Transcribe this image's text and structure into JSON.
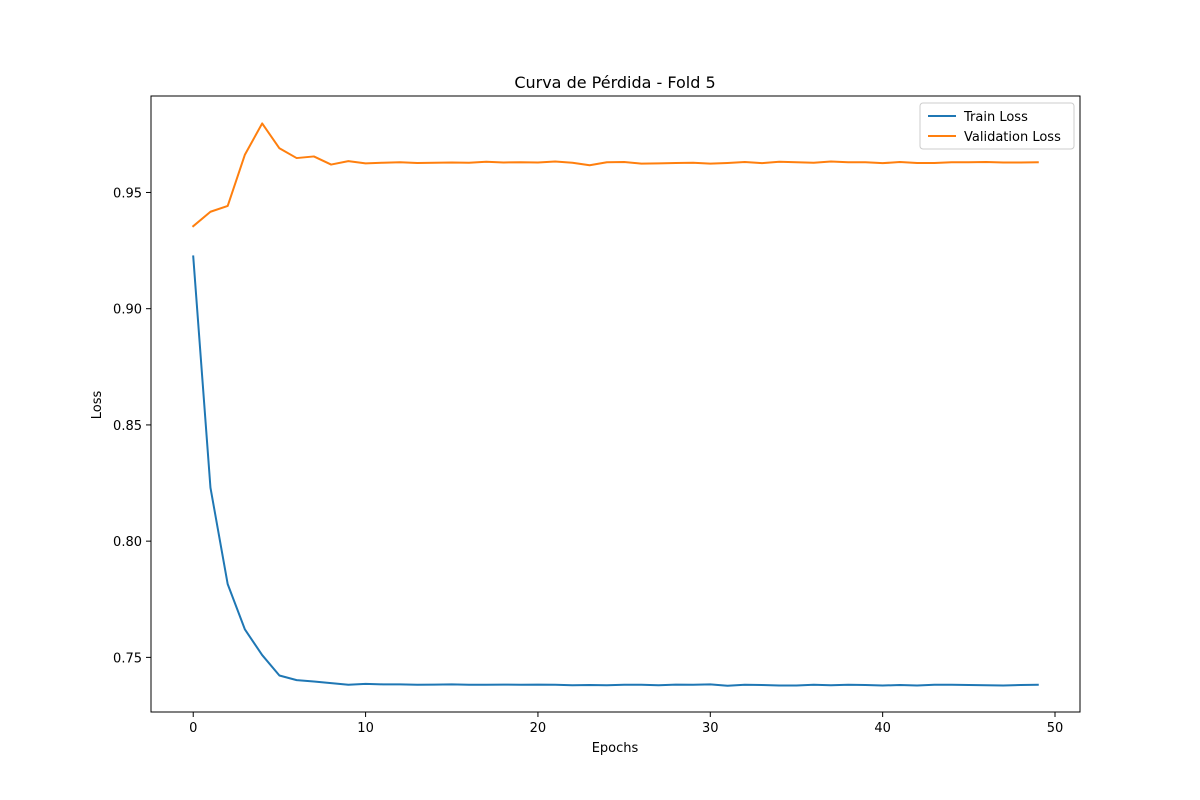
{
  "chart_data": {
    "type": "line",
    "title": "Curva de Pérdida - Fold 5",
    "xlabel": "Epochs",
    "ylabel": "Loss",
    "xlim": [
      -2.45,
      51.45
    ],
    "ylim": [
      0.7265,
      0.9915
    ],
    "xticks": [
      0,
      10,
      20,
      30,
      40,
      50
    ],
    "xtick_labels": [
      "0",
      "10",
      "20",
      "30",
      "40",
      "50"
    ],
    "yticks": [
      0.75,
      0.8,
      0.85,
      0.9,
      0.95
    ],
    "ytick_labels": [
      "0.75",
      "0.80",
      "0.85",
      "0.90",
      "0.95"
    ],
    "grid": false,
    "legend_position": "upper-right",
    "x": [
      0,
      1,
      2,
      3,
      4,
      5,
      6,
      7,
      8,
      9,
      10,
      11,
      12,
      13,
      14,
      15,
      16,
      17,
      18,
      19,
      20,
      21,
      22,
      23,
      24,
      25,
      26,
      27,
      28,
      29,
      30,
      31,
      32,
      33,
      34,
      35,
      36,
      37,
      38,
      39,
      40,
      41,
      42,
      43,
      44,
      45,
      46,
      47,
      48,
      49
    ],
    "series": [
      {
        "name": "Train Loss",
        "color": "#1f77b4",
        "values": [
          0.9225,
          0.823,
          0.7815,
          0.762,
          0.751,
          0.7422,
          0.7402,
          0.7396,
          0.7389,
          0.7382,
          0.7386,
          0.7384,
          0.7384,
          0.7382,
          0.7383,
          0.7384,
          0.7382,
          0.7382,
          0.7383,
          0.7382,
          0.7383,
          0.7382,
          0.738,
          0.7381,
          0.738,
          0.7382,
          0.7382,
          0.738,
          0.7383,
          0.7382,
          0.7384,
          0.7378,
          0.7382,
          0.7381,
          0.7379,
          0.7379,
          0.7382,
          0.738,
          0.7382,
          0.7381,
          0.7379,
          0.7381,
          0.7379,
          0.7382,
          0.7382,
          0.7381,
          0.738,
          0.7379,
          0.7381,
          0.7382
        ]
      },
      {
        "name": "Validation Loss",
        "color": "#ff7f0e",
        "values": [
          0.9355,
          0.9417,
          0.9442,
          0.9663,
          0.9797,
          0.969,
          0.9648,
          0.9655,
          0.962,
          0.9635,
          0.9625,
          0.9628,
          0.963,
          0.9627,
          0.9628,
          0.9629,
          0.9628,
          0.9632,
          0.9629,
          0.963,
          0.9629,
          0.9633,
          0.9628,
          0.9617,
          0.963,
          0.9631,
          0.9624,
          0.9625,
          0.9627,
          0.9628,
          0.9624,
          0.9627,
          0.9631,
          0.9626,
          0.9632,
          0.963,
          0.9628,
          0.9633,
          0.963,
          0.963,
          0.9626,
          0.9631,
          0.9627,
          0.9627,
          0.963,
          0.963,
          0.9631,
          0.9629,
          0.9629,
          0.963
        ]
      }
    ]
  }
}
